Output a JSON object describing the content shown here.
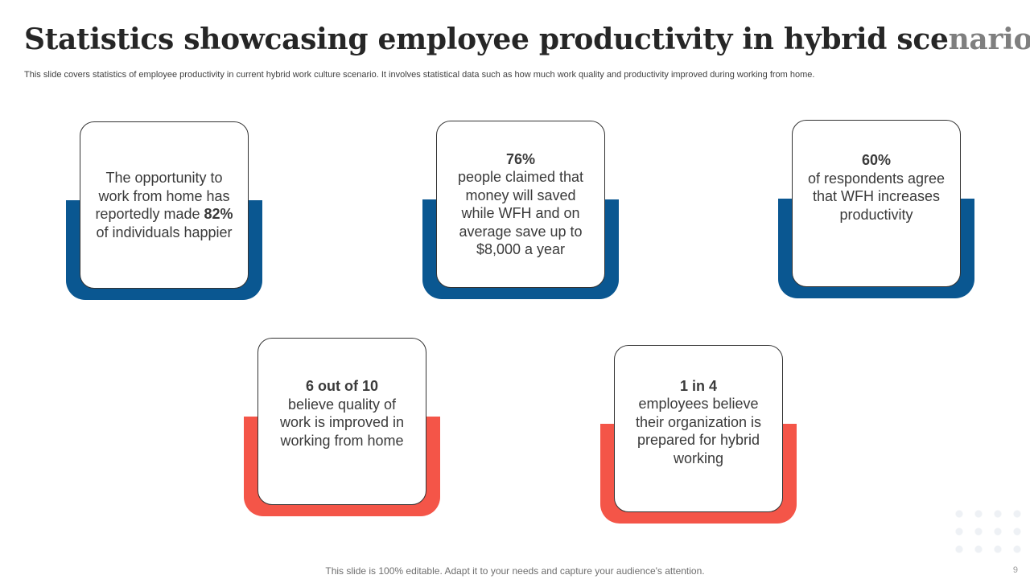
{
  "header": {
    "title_main": "Statistics showcasing employee productivity in hybrid sce",
    "title_fade": "nario",
    "subtitle": "This slide covers statistics of employee productivity in current hybrid work culture scenario. It involves statistical data such as how much work quality and productivity improved during working from home."
  },
  "cards": [
    {
      "line_a": "The opportunity to work from home has reportedly made ",
      "stat": "82%",
      "line_b": " of individuals happier"
    },
    {
      "stat": "76%",
      "text": "people claimed that money will saved while WFH and on average save up to $8,000 a year"
    },
    {
      "stat": "60%",
      "text": "of respondents agree that WFH increases productivity"
    },
    {
      "stat": "6 out of 10",
      "text": "believe quality of work is improved in working from home"
    },
    {
      "stat": "1 in 4",
      "text": "employees believe their organization is prepared for hybrid working"
    }
  ],
  "footer": {
    "note": "This slide is 100% editable. Adapt it to your needs and capture your audience's attention.",
    "page_number": "9"
  },
  "colors": {
    "blue": "#0a5791",
    "red": "#f45548"
  }
}
